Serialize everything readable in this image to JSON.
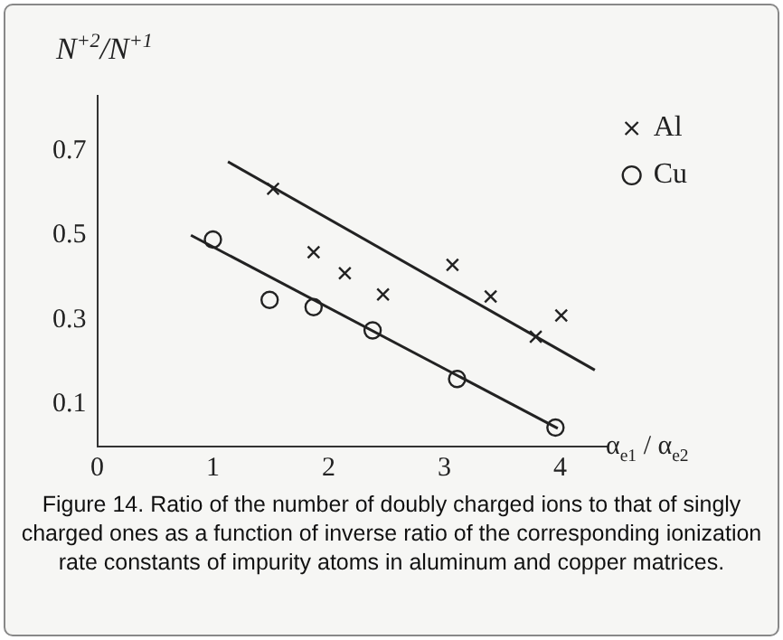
{
  "chart_data": {
    "type": "scatter",
    "xlabel": "α$_{e1}$ / α$_{e2}$",
    "ylabel": "N$^{+2}$/N$^{+1}$",
    "xlim": [
      0,
      4.4
    ],
    "xticks": [
      0,
      1,
      2,
      3,
      4
    ],
    "ylim": [
      0,
      0.83
    ],
    "yticks": [
      0.1,
      0.3,
      0.5,
      0.7
    ],
    "grid": false,
    "legend": "top right",
    "series": [
      {
        "name": "Al",
        "marker": "cross",
        "color": "#222222",
        "x": [
          1.52,
          1.87,
          2.14,
          2.47,
          3.07,
          3.4,
          3.79,
          4.01
        ],
        "values": [
          0.61,
          0.46,
          0.41,
          0.36,
          0.43,
          0.355,
          0.26,
          0.31
        ]
      },
      {
        "name": "Cu",
        "marker": "circle",
        "color": "#222222",
        "x": [
          1.0,
          1.49,
          1.87,
          2.38,
          3.11,
          3.96
        ],
        "values": [
          0.49,
          0.347,
          0.33,
          0.275,
          0.16,
          0.045
        ]
      },
      {
        "type": "line",
        "marker": "none",
        "color": "#222222",
        "x": [
          1.13,
          4.3
        ],
        "values": [
          0.674,
          0.181
        ]
      },
      {
        "type": "line",
        "marker": "none",
        "color": "#222222",
        "x": [
          0.81,
          3.98
        ],
        "values": [
          0.5,
          0.043
        ]
      }
    ],
    "annotations": [
      "Figure 14. Ratio of the number of doubly charged ions to that of singly charged ones as a function of inverse ratio of the corresponding ionization rate constants of impurity atoms in aluminum and copper matrices."
    ]
  }
}
